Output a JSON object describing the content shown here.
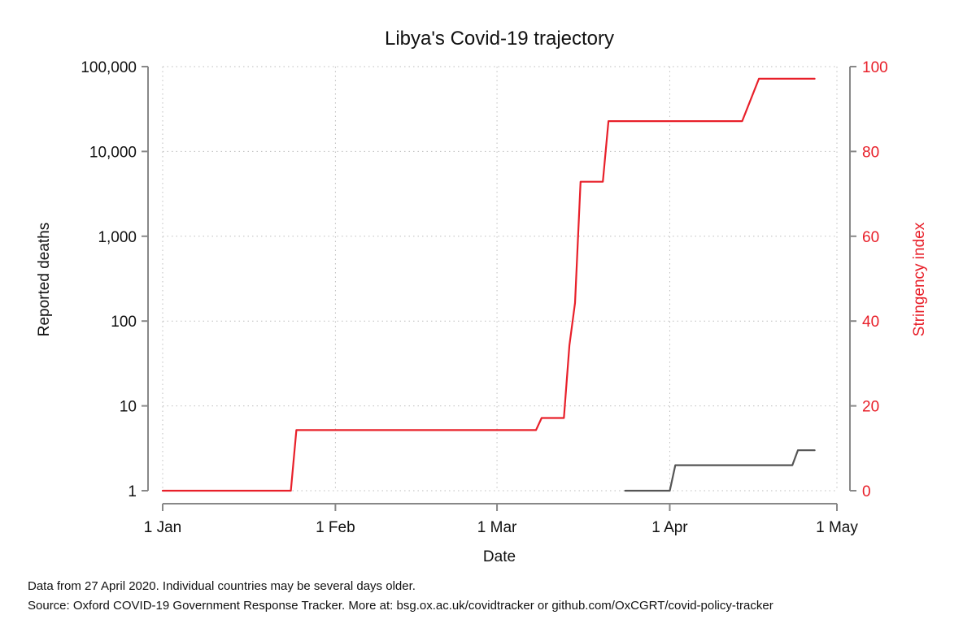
{
  "chart_data": {
    "type": "line",
    "title": "Libya's Covid-19 trajectory",
    "xlabel": "Date",
    "ylabel_left": "Reported deaths",
    "ylabel_right": "Stringency index",
    "x_axis": {
      "type": "date",
      "range": [
        "2020-01-01",
        "2020-05-01"
      ],
      "ticks": [
        {
          "date": "2020-01-01",
          "label": "1 Jan"
        },
        {
          "date": "2020-02-01",
          "label": "1 Feb"
        },
        {
          "date": "2020-03-01",
          "label": "1 Mar"
        },
        {
          "date": "2020-04-01",
          "label": "1 Apr"
        },
        {
          "date": "2020-05-01",
          "label": "1 May"
        }
      ]
    },
    "y_left": {
      "scale": "log",
      "range": [
        1,
        100000
      ],
      "ticks": [
        {
          "value": 1,
          "label": "1"
        },
        {
          "value": 10,
          "label": "10"
        },
        {
          "value": 100,
          "label": "100"
        },
        {
          "value": 1000,
          "label": "1,000"
        },
        {
          "value": 10000,
          "label": "10,000"
        },
        {
          "value": 100000,
          "label": "100,000"
        }
      ]
    },
    "y_right": {
      "scale": "linear",
      "range": [
        0,
        100
      ],
      "ticks": [
        {
          "value": 0,
          "label": "0"
        },
        {
          "value": 20,
          "label": "20"
        },
        {
          "value": 40,
          "label": "40"
        },
        {
          "value": 60,
          "label": "60"
        },
        {
          "value": 80,
          "label": "80"
        },
        {
          "value": 100,
          "label": "100"
        }
      ]
    },
    "grid": true,
    "series": [
      {
        "axis": "left",
        "color": "#555555",
        "points": [
          [
            "2020-03-24",
            1
          ],
          [
            "2020-04-01",
            1
          ],
          [
            "2020-04-02",
            2
          ],
          [
            "2020-04-23",
            2
          ],
          [
            "2020-04-24",
            3
          ],
          [
            "2020-04-27",
            3
          ]
        ]
      },
      {
        "axis": "right",
        "color": "#e8202a",
        "points": [
          [
            "2020-01-01",
            0
          ],
          [
            "2020-01-24",
            0
          ],
          [
            "2020-01-25",
            14.29
          ],
          [
            "2020-03-08",
            14.29
          ],
          [
            "2020-03-09",
            17.14
          ],
          [
            "2020-03-13",
            17.14
          ],
          [
            "2020-03-14",
            34.29
          ],
          [
            "2020-03-15",
            44.29
          ],
          [
            "2020-03-16",
            72.86
          ],
          [
            "2020-03-20",
            72.86
          ],
          [
            "2020-03-21",
            87.14
          ],
          [
            "2020-04-14",
            87.14
          ],
          [
            "2020-04-17",
            97.14
          ],
          [
            "2020-04-27",
            97.14
          ]
        ]
      }
    ]
  },
  "notes": {
    "line1": "Data from 27 April 2020. Individual countries may be several days older.",
    "line2": "Source: Oxford COVID-19 Government Response Tracker. More at: bsg.ox.ac.uk/covidtracker or github.com/OxCGRT/covid-policy-tracker"
  }
}
